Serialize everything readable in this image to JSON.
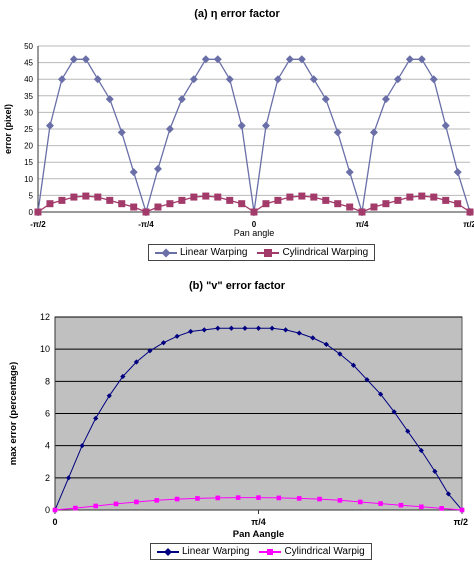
{
  "chart_data": [
    {
      "type": "line",
      "title": "(a) η error factor",
      "xlabel": "Pan angle",
      "ylabel": "error (pixel)",
      "ylim": [
        0,
        50
      ],
      "yticks": [
        "0",
        "5",
        "10",
        "15",
        "20",
        "25",
        "30",
        "35",
        "40",
        "45",
        "50"
      ],
      "xtick_labels": [
        "-π/2",
        "-π/4",
        "0",
        "π/4",
        "π/2"
      ],
      "xtick_positions": [
        -1.5708,
        -0.7854,
        0,
        0.7854,
        1.5708
      ],
      "xlim": [
        -1.5708,
        1.5708
      ],
      "grid": "horizontal",
      "legend_position": "bottom-center",
      "series": [
        {
          "name": "Linear Warping",
          "color": "#6a6fa8",
          "marker": "diamond",
          "x": [
            -1.5708,
            -1.4838,
            -1.3968,
            -1.3098,
            -1.2228,
            -1.1358,
            -1.0488,
            -0.9618,
            -0.8748,
            -0.7854,
            -0.6984,
            -0.6114,
            -0.5244,
            -0.4374,
            -0.3504,
            -0.2634,
            -0.1764,
            -0.0894,
            0,
            0.087,
            0.174,
            0.261,
            0.348,
            0.435,
            0.522,
            0.609,
            0.696,
            0.7854,
            0.8724,
            0.9594,
            1.0464,
            1.1334,
            1.2204,
            1.3074,
            1.3944,
            1.4814,
            1.5708
          ],
          "values": [
            0,
            26,
            40,
            46,
            46,
            40,
            34,
            24,
            12,
            0,
            13,
            25,
            34,
            40,
            46,
            46,
            40,
            26,
            0,
            26,
            40,
            46,
            46,
            40,
            34,
            24,
            12,
            0,
            24,
            34,
            40,
            46,
            46,
            40,
            26,
            12,
            0
          ]
        },
        {
          "name": "Cylindrical Warping",
          "color": "#a23a6a",
          "marker": "square",
          "x": [
            -1.5708,
            -1.4838,
            -1.3968,
            -1.3098,
            -1.2228,
            -1.1358,
            -1.0488,
            -0.9618,
            -0.8748,
            -0.7854,
            -0.6984,
            -0.6114,
            -0.5244,
            -0.4374,
            -0.3504,
            -0.2634,
            -0.1764,
            -0.0894,
            0,
            0.087,
            0.174,
            0.261,
            0.348,
            0.435,
            0.522,
            0.609,
            0.696,
            0.7854,
            0.8724,
            0.9594,
            1.0464,
            1.1334,
            1.2204,
            1.3074,
            1.3944,
            1.4814,
            1.5708
          ],
          "values": [
            0,
            2.5,
            3.5,
            4.5,
            4.8,
            4.5,
            3.5,
            2.5,
            1.5,
            0,
            1.5,
            2.5,
            3.5,
            4.5,
            4.8,
            4.5,
            3.5,
            2.5,
            0,
            2.5,
            3.5,
            4.5,
            4.8,
            4.5,
            3.5,
            2.5,
            1.5,
            0,
            1.5,
            2.5,
            3.5,
            4.5,
            4.8,
            4.5,
            3.5,
            2.5,
            0
          ]
        }
      ]
    },
    {
      "type": "line",
      "title": "(b) \"v\" error factor",
      "xlabel": "Pan Aangle",
      "ylabel": "max error (percentage)",
      "ylim": [
        0,
        12
      ],
      "yticks": [
        "0",
        "2",
        "4",
        "6",
        "8",
        "10",
        "12"
      ],
      "xtick_labels": [
        "0",
        "π/4",
        "π/2"
      ],
      "xtick_positions": [
        0,
        0.7854,
        1.5708
      ],
      "xlim": [
        0,
        1.5708
      ],
      "grid": "horizontal",
      "plot_background": "#c0c0c0",
      "legend_position": "bottom-center",
      "series": [
        {
          "name": "Linear Warping",
          "color": "#000080",
          "marker": "diamond",
          "x": [
            0,
            0.0524,
            0.1047,
            0.1571,
            0.2094,
            0.2618,
            0.3142,
            0.3665,
            0.4189,
            0.4712,
            0.5236,
            0.576,
            0.6283,
            0.6807,
            0.733,
            0.7854,
            0.8378,
            0.8901,
            0.9425,
            0.9948,
            1.0472,
            1.0996,
            1.1519,
            1.2043,
            1.2566,
            1.309,
            1.3614,
            1.4137,
            1.4661,
            1.5184,
            1.5708
          ],
          "values": [
            0,
            2.0,
            4.0,
            5.7,
            7.1,
            8.3,
            9.2,
            9.9,
            10.4,
            10.8,
            11.1,
            11.2,
            11.3,
            11.3,
            11.3,
            11.3,
            11.3,
            11.2,
            11.0,
            10.7,
            10.3,
            9.7,
            9.0,
            8.1,
            7.2,
            6.1,
            4.9,
            3.7,
            2.4,
            1.0,
            0
          ]
        },
        {
          "name": "Cylindrical Warpig",
          "color": "#ff00ff",
          "marker": "square",
          "x": [
            0,
            0.0785,
            0.1571,
            0.2356,
            0.3142,
            0.3927,
            0.4712,
            0.5498,
            0.6283,
            0.7069,
            0.7854,
            0.8639,
            0.9425,
            1.021,
            1.0996,
            1.1781,
            1.2566,
            1.3352,
            1.4137,
            1.4923,
            1.5708
          ],
          "values": [
            0,
            0.12,
            0.25,
            0.38,
            0.5,
            0.6,
            0.68,
            0.72,
            0.75,
            0.77,
            0.77,
            0.75,
            0.72,
            0.68,
            0.6,
            0.5,
            0.4,
            0.3,
            0.2,
            0.1,
            0
          ]
        }
      ]
    }
  ]
}
